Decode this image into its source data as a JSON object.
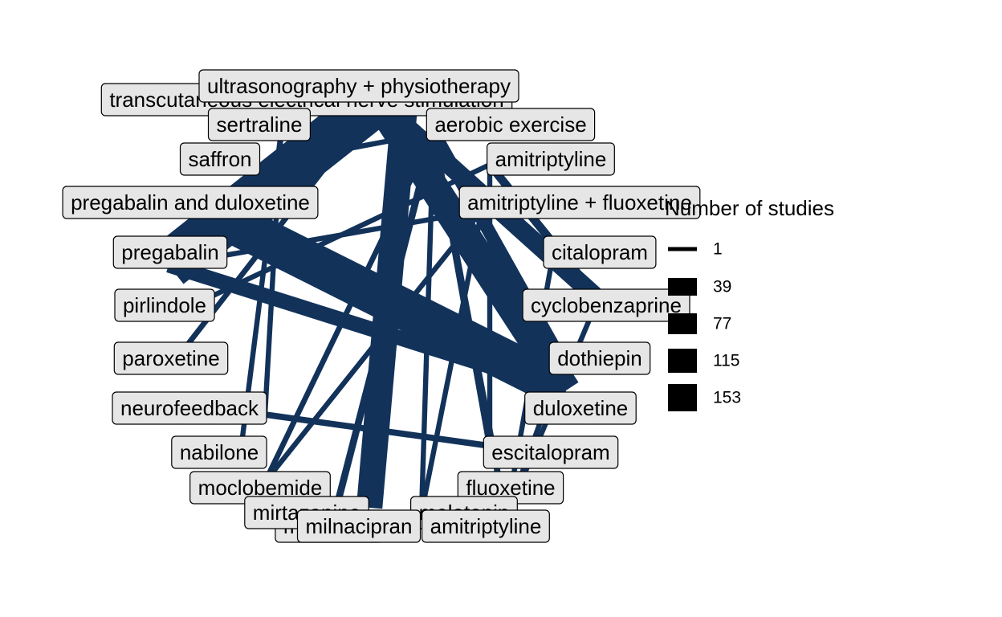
{
  "diagram": {
    "type": "network",
    "edge_color": "#12325a",
    "node_fill": "#e6e6e6",
    "nodes": [
      {
        "id": "uspt",
        "label": "ultrasonography + physiotherapy"
      },
      {
        "id": "tens",
        "label": "transcutaneous electrical nerve stimulation"
      },
      {
        "id": "sert",
        "label": "sertraline"
      },
      {
        "id": "aero",
        "label": "aerobic exercise"
      },
      {
        "id": "saff",
        "label": "saffron"
      },
      {
        "id": "amit",
        "label": "amitriptyline"
      },
      {
        "id": "pgdx",
        "label": "pregabalin and duloxetine"
      },
      {
        "id": "amfl",
        "label": "amitriptyline + fluoxetine"
      },
      {
        "id": "preg",
        "label": "pregabalin"
      },
      {
        "id": "cita",
        "label": "citalopram"
      },
      {
        "id": "pirl",
        "label": "pirlindole"
      },
      {
        "id": "cycl",
        "label": "cyclobenzaprine"
      },
      {
        "id": "paro",
        "label": "paroxetine"
      },
      {
        "id": "doth",
        "label": "dothiepin"
      },
      {
        "id": "neur",
        "label": "neurofeedback"
      },
      {
        "id": "dulo",
        "label": "duloxetine"
      },
      {
        "id": "nabi",
        "label": "nabilone"
      },
      {
        "id": "esci",
        "label": "escitalopram"
      },
      {
        "id": "mocl",
        "label": "moclobemide"
      },
      {
        "id": "fluo",
        "label": "fluoxetine"
      },
      {
        "id": "mirt",
        "label": "mirtazapine"
      },
      {
        "id": "melatonin",
        "label": "melatonin"
      },
      {
        "id": "milnacipran",
        "label": "milnacipran"
      },
      {
        "id": "amit2",
        "label": "amitriptyline"
      },
      {
        "id": "minaprine",
        "label": "minaprine"
      }
    ],
    "edges": [
      {
        "source": "tens",
        "target": "preg",
        "studies": 120
      },
      {
        "source": "tens",
        "target": "dulo",
        "studies": 70
      },
      {
        "source": "tens",
        "target": "cycl",
        "studies": 40
      },
      {
        "source": "tens",
        "target": "paro",
        "studies": 4
      },
      {
        "source": "pgdx",
        "target": "dulo",
        "studies": 100
      },
      {
        "source": "preg",
        "target": "dulo",
        "studies": 30
      },
      {
        "source": "uspt",
        "target": "milnacipran",
        "studies": 60
      },
      {
        "source": "aero",
        "target": "doth",
        "studies": 25
      },
      {
        "source": "aero",
        "target": "mirt",
        "studies": 8
      },
      {
        "source": "aero",
        "target": "esci",
        "studies": 6
      },
      {
        "source": "aero",
        "target": "fluo",
        "studies": 6
      },
      {
        "source": "amit",
        "target": "cycl",
        "studies": 12
      },
      {
        "source": "sert",
        "target": "neur",
        "studies": 3
      },
      {
        "source": "sert",
        "target": "nabi",
        "studies": 3
      },
      {
        "source": "saff",
        "target": "aero",
        "studies": 3
      },
      {
        "source": "amfl",
        "target": "preg",
        "studies": 3
      },
      {
        "source": "amfl",
        "target": "melatonin",
        "studies": 3
      },
      {
        "source": "amfl",
        "target": "mocl",
        "studies": 3
      },
      {
        "source": "cita",
        "target": "amit2",
        "studies": 3
      },
      {
        "source": "cycl",
        "target": "amit2",
        "studies": 3
      },
      {
        "source": "doth",
        "target": "amit2",
        "studies": 3
      },
      {
        "source": "neur",
        "target": "esci",
        "studies": 6
      },
      {
        "source": "pirl",
        "target": "amit",
        "studies": 3
      },
      {
        "source": "mocl",
        "target": "aero",
        "studies": 4
      },
      {
        "source": "mirt",
        "target": "aero",
        "studies": 3
      },
      {
        "source": "fluo",
        "target": "aero",
        "studies": 4
      },
      {
        "source": "esci",
        "target": "amit",
        "studies": 3
      },
      {
        "source": "melatonin",
        "target": "aero",
        "studies": 3
      }
    ]
  },
  "legend": {
    "title": "Number of studies",
    "items": [
      {
        "label": "1",
        "value": 1
      },
      {
        "label": "39",
        "value": 39
      },
      {
        "label": "77",
        "value": 77
      },
      {
        "label": "115",
        "value": 115
      },
      {
        "label": "153",
        "value": 153
      }
    ]
  }
}
